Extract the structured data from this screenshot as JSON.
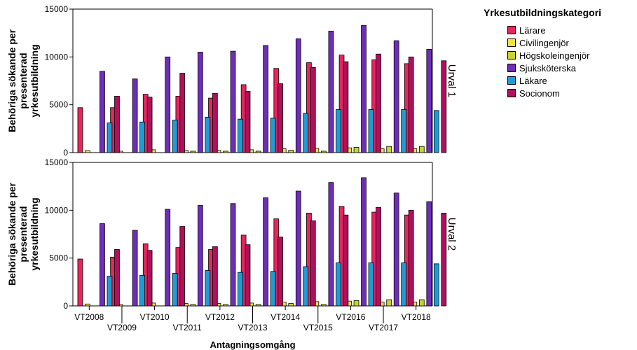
{
  "chart_data": {
    "type": "bar",
    "xlabel": "Antagningsomgång",
    "ylabel_lines": [
      "Behöriga sökande per",
      "presenterad",
      "yrkesutbildning"
    ],
    "ylim": [
      0,
      15000
    ],
    "yticks": [
      "0",
      "5000",
      "10000",
      "15000"
    ],
    "categories": [
      "VT2008",
      "VT2009",
      "VT2010",
      "VT2011",
      "VT2012",
      "VT2013",
      "VT2014",
      "VT2015",
      "VT2016",
      "VT2017",
      "VT2018"
    ],
    "legend_title": "Yrkesutbildningskategori",
    "series_meta": [
      {
        "name": "Lärare",
        "color": "#E8265E"
      },
      {
        "name": "Civilingenjör",
        "color": "#F2E24A"
      },
      {
        "name": "Högskoleingenjör",
        "color": "#C8D42B"
      },
      {
        "name": "Sjuksköterska",
        "color": "#6E2EB8"
      },
      {
        "name": "Läkare",
        "color": "#1E9CD8"
      },
      {
        "name": "Socionom",
        "color": "#B0105C"
      }
    ],
    "panels": [
      {
        "label": "Urval 1",
        "series": [
          {
            "name": "Lärare",
            "values": [
              4700,
              4700,
              6100,
              5900,
              5700,
              7100,
              8800,
              9400,
              10200,
              9700,
              9300
            ]
          },
          {
            "name": "Civilingenjör",
            "values": [
              200,
              150,
              300,
              250,
              250,
              300,
              400,
              450,
              500,
              400,
              400
            ]
          },
          {
            "name": "Högskoleingenjör",
            "values": [
              0,
              0,
              0,
              150,
              150,
              150,
              250,
              150,
              550,
              650,
              650
            ]
          },
          {
            "name": "Sjuksköterska",
            "values": [
              8500,
              7700,
              10000,
              10500,
              10600,
              11200,
              11900,
              12700,
              13300,
              11700,
              10800
            ]
          },
          {
            "name": "Läkare",
            "values": [
              3100,
              3200,
              3400,
              3700,
              3500,
              3600,
              4100,
              4500,
              4500,
              4500,
              4400
            ]
          },
          {
            "name": "Socionom",
            "values": [
              5900,
              5800,
              8300,
              6200,
              6400,
              7200,
              8900,
              9500,
              10300,
              10000,
              9600
            ]
          }
        ]
      },
      {
        "label": "Urval 2",
        "series": [
          {
            "name": "Lärare",
            "values": [
              4900,
              5100,
              6500,
              6100,
              5900,
              7400,
              9100,
              9700,
              10400,
              9800,
              9500
            ]
          },
          {
            "name": "Civilingenjör",
            "values": [
              200,
              150,
              300,
              250,
              250,
              300,
              400,
              450,
              500,
              400,
              400
            ]
          },
          {
            "name": "Högskoleingenjör",
            "values": [
              0,
              0,
              0,
              150,
              150,
              150,
              250,
              150,
              550,
              650,
              650
            ]
          },
          {
            "name": "Sjuksköterska",
            "values": [
              8600,
              7900,
              10100,
              10500,
              10700,
              11300,
              12000,
              12900,
              13400,
              11800,
              10900
            ]
          },
          {
            "name": "Läkare",
            "values": [
              3100,
              3200,
              3400,
              3700,
              3500,
              3600,
              4100,
              4500,
              4500,
              4500,
              4400
            ]
          },
          {
            "name": "Socionom",
            "values": [
              5900,
              5800,
              8300,
              6200,
              6400,
              7200,
              8900,
              9500,
              10300,
              10000,
              9700
            ]
          }
        ]
      }
    ]
  }
}
